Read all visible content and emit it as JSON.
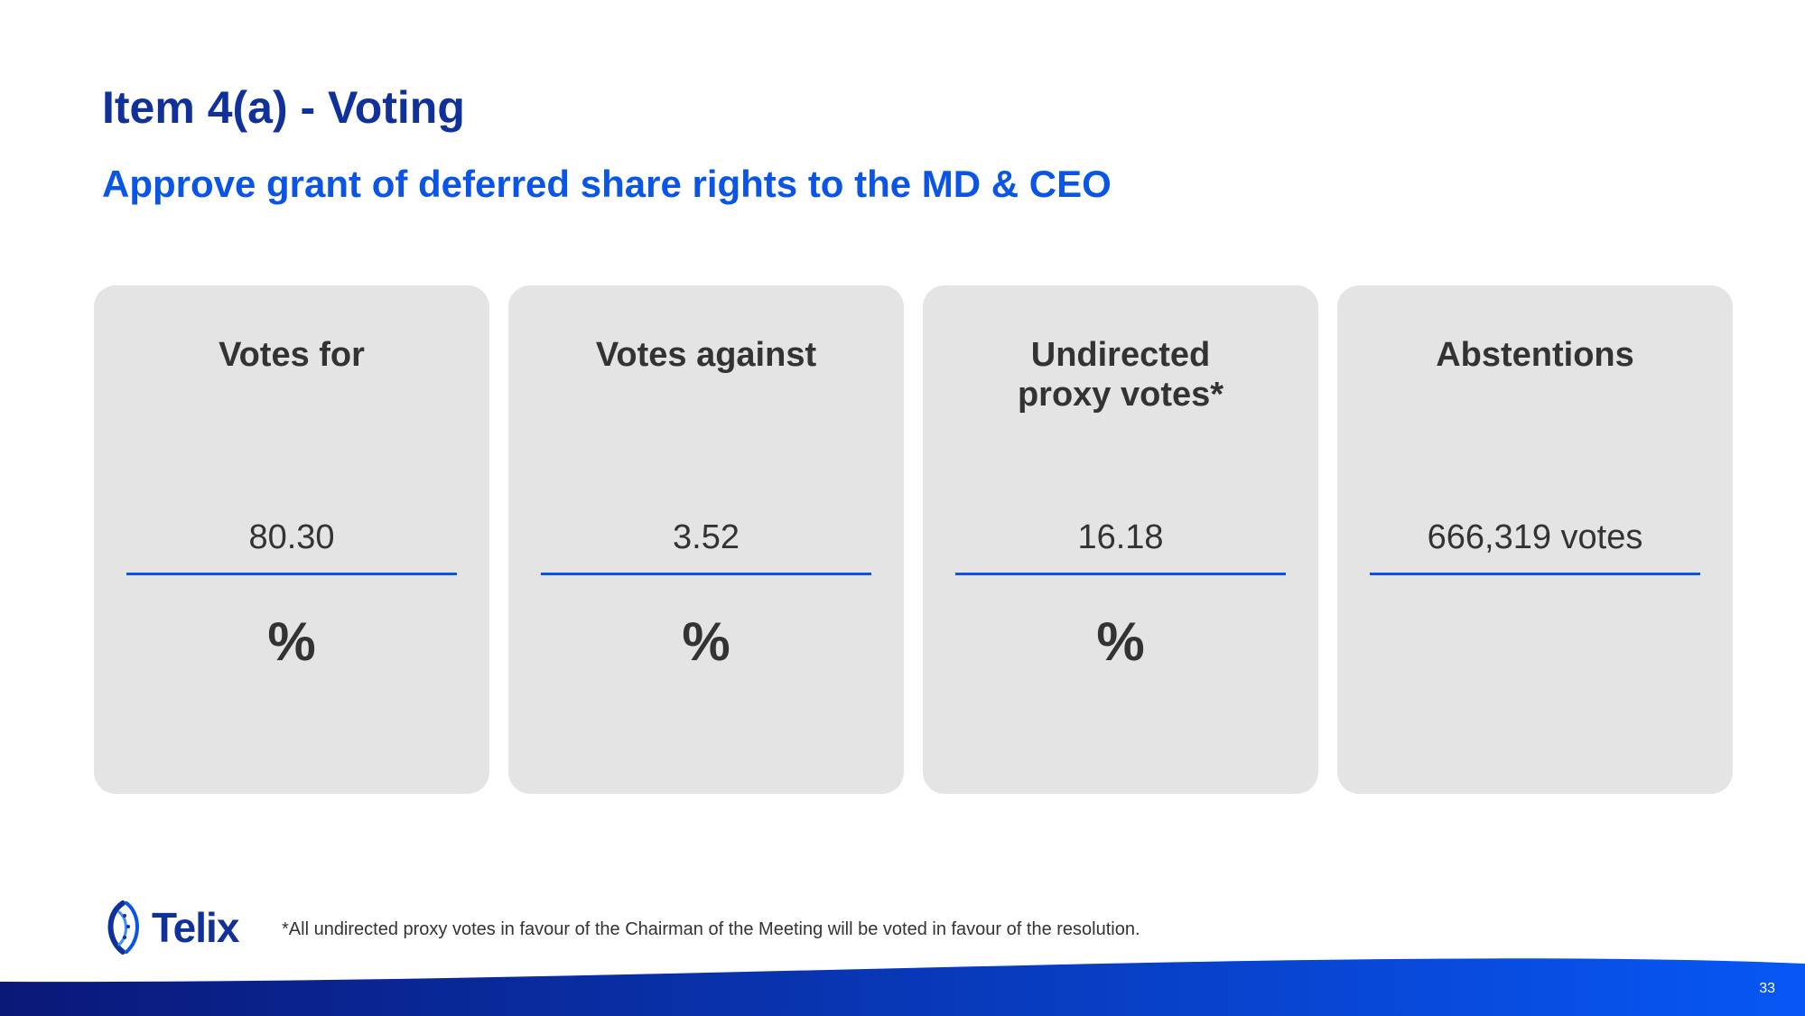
{
  "slide": {
    "title": "Item 4(a) - Voting",
    "subtitle": "Approve grant of deferred share rights to the MD & CEO",
    "footnote": "*All undirected proxy votes in favour of the Chairman of the Meeting will be voted in favour of the resolution.",
    "page_number": "33"
  },
  "cards": [
    {
      "title": "Votes for",
      "value": "80.30",
      "unit": "%"
    },
    {
      "title": "Votes against",
      "value": "3.52",
      "unit": "%"
    },
    {
      "title": "Undirected\nproxy votes*",
      "value": "16.18",
      "unit": "%"
    },
    {
      "title": "Abstentions",
      "value": "666,319 votes",
      "unit": ""
    }
  ],
  "logo": {
    "text": "Telix",
    "icon": "telix-helix-icon"
  },
  "colors": {
    "title": "#10309a",
    "subtitle": "#0b55e6",
    "card_background": "#e4e4e4",
    "divider": "#0b55e6",
    "footer_gradient_start": "#0a1878",
    "footer_gradient_end": "#0757f5"
  }
}
